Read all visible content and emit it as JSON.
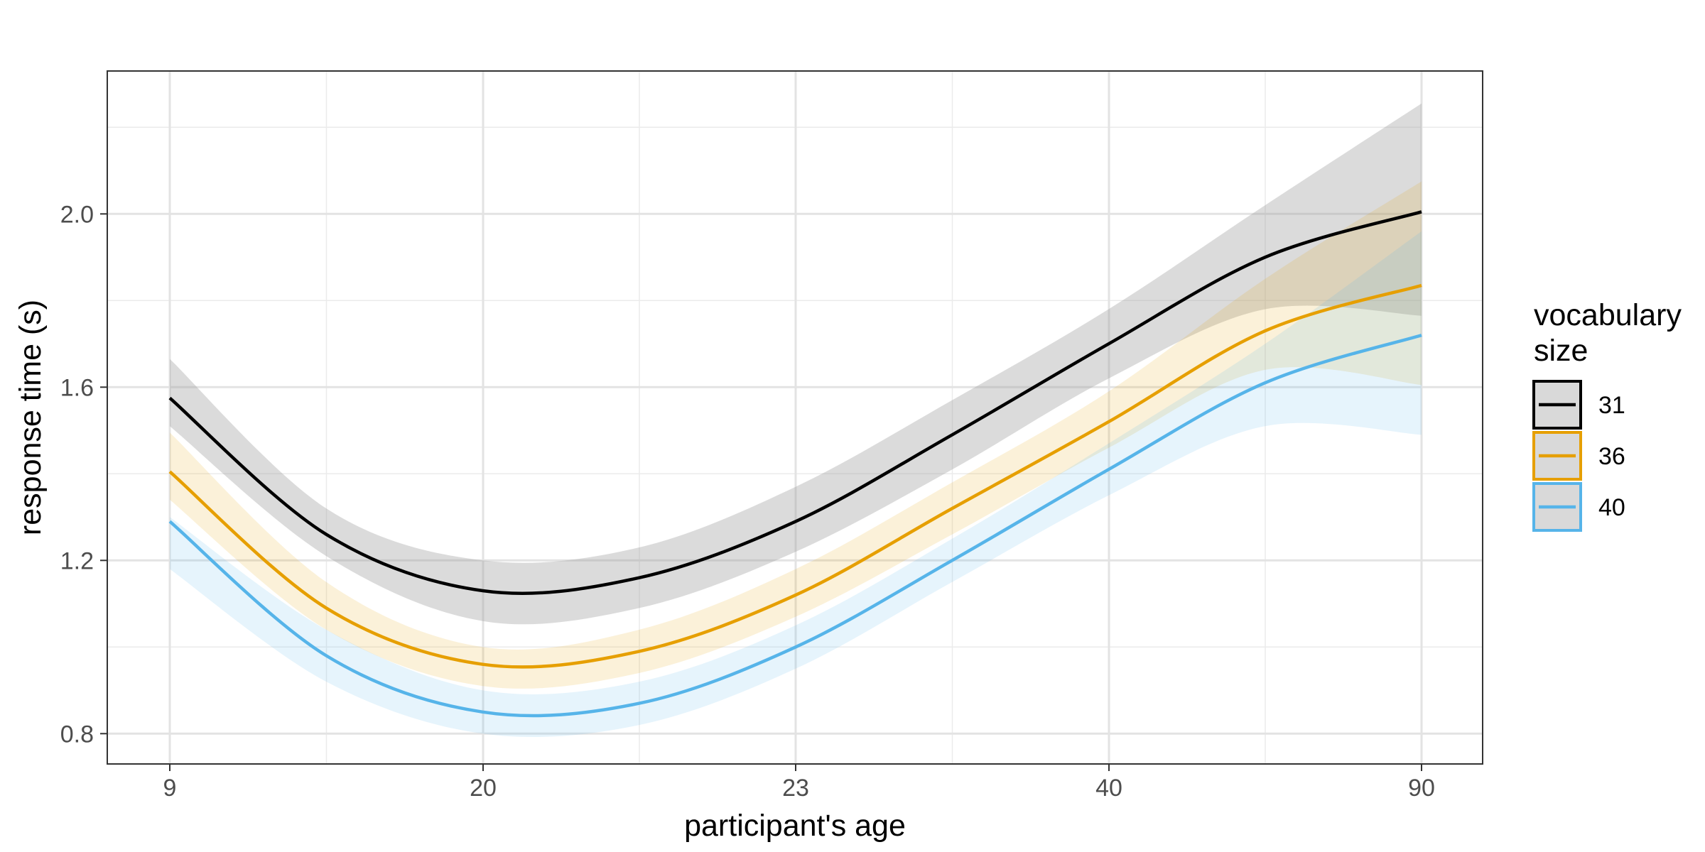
{
  "chart_data": {
    "type": "line",
    "xlabel": "participant's age",
    "ylabel": "response time (s)",
    "x_ticks": [
      "9",
      "20",
      "23",
      "40",
      "90"
    ],
    "y_ticks": [
      0.8,
      1.2,
      1.6,
      2.0
    ],
    "ylim": [
      0.73,
      2.33
    ],
    "grid": true,
    "legend": {
      "title_lines": [
        "vocabulary",
        "size"
      ],
      "placement": "right"
    },
    "x_positions": [
      0,
      0.5,
      1,
      1.5,
      2,
      2.5,
      3,
      3.5,
      4
    ],
    "series": [
      {
        "name": "31",
        "color": "#000000",
        "band_color": "#999999",
        "values": [
          1.575,
          1.26,
          1.13,
          1.16,
          1.29,
          1.49,
          1.7,
          1.9,
          2.005
        ],
        "lower": [
          1.51,
          1.21,
          1.06,
          1.09,
          1.22,
          1.41,
          1.62,
          1.78,
          1.765
        ],
        "upper": [
          1.665,
          1.32,
          1.2,
          1.23,
          1.37,
          1.57,
          1.78,
          2.02,
          2.255
        ]
      },
      {
        "name": "36",
        "color": "#E69F00",
        "band_color": "#E69F00",
        "values": [
          1.405,
          1.09,
          0.96,
          0.99,
          1.12,
          1.32,
          1.52,
          1.73,
          1.835
        ],
        "lower": [
          1.34,
          1.04,
          0.91,
          0.94,
          1.07,
          1.26,
          1.46,
          1.64,
          1.605
        ],
        "upper": [
          1.495,
          1.15,
          1.0,
          1.04,
          1.18,
          1.38,
          1.59,
          1.85,
          2.075
        ]
      },
      {
        "name": "40",
        "color": "#56B4E9",
        "band_color": "#56B4E9",
        "values": [
          1.29,
          0.98,
          0.85,
          0.87,
          1.0,
          1.2,
          1.41,
          1.61,
          1.72
        ],
        "lower": [
          1.18,
          0.92,
          0.8,
          0.82,
          0.95,
          1.15,
          1.35,
          1.51,
          1.49
        ],
        "upper": [
          1.3,
          1.04,
          0.9,
          0.92,
          1.05,
          1.25,
          1.47,
          1.7,
          1.96
        ]
      }
    ]
  }
}
